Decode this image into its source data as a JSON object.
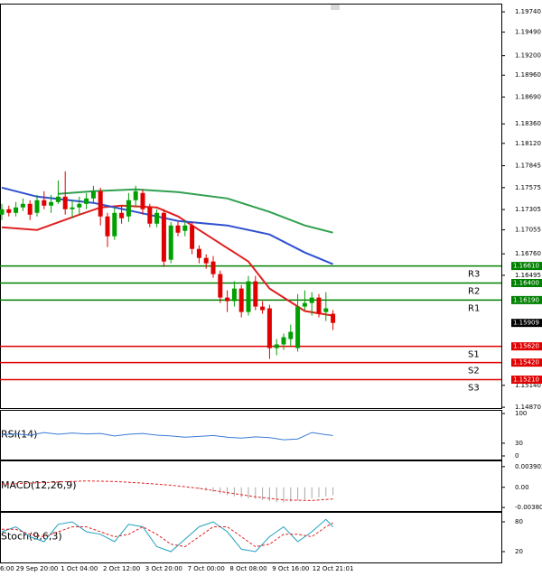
{
  "chart_data": [
    {
      "type": "candlestick",
      "categories": [
        "6:00",
        null,
        null,
        null,
        null,
        "29 Sep 20:00",
        null,
        null,
        null,
        null,
        null,
        "1 Oct 04:00",
        null,
        null,
        null,
        null,
        null,
        "2 Oct 12:00",
        null,
        null,
        null,
        null,
        null,
        "3 Oct 20:00",
        null,
        null,
        null,
        null,
        null,
        "7 Oct 00:00",
        null,
        null,
        null,
        null,
        null,
        "8 Oct 08:00",
        null,
        null,
        null,
        null,
        null,
        "9 Oct 16:00",
        null,
        null,
        null,
        null,
        null,
        "12 Oct 21:01"
      ],
      "open": [
        1.17242,
        1.17309,
        1.17264,
        1.17331,
        1.17375,
        1.17264,
        1.1742,
        1.17353,
        1.17398,
        1.17464,
        1.17309,
        1.17331,
        1.17375,
        1.17442,
        1.17531,
        1.1722,
        1.16976,
        1.17264,
        1.1722,
        1.1742,
        1.17509,
        1.17331,
        1.17131,
        1.17264,
        1.16687,
        1.17109,
        1.17042,
        1.17109,
        1.1682,
        1.16709,
        1.16665,
        1.1651,
        1.16221,
        1.16177,
        1.16332,
        1.16043,
        1.16421,
        1.1611,
        1.16088,
        1.15599,
        1.15644,
        1.1571,
        1.15599,
        1.1611,
        1.16154,
        1.16221,
        1.16043,
        1.16021
      ],
      "high": [
        1.17375,
        1.17353,
        1.17398,
        1.17442,
        1.1742,
        1.17486,
        1.17531,
        1.17486,
        1.17664,
        1.17775,
        1.1742,
        1.17464,
        1.17509,
        1.17597,
        1.17575,
        1.17264,
        1.17331,
        1.17353,
        1.17509,
        1.17597,
        1.17553,
        1.17375,
        1.17309,
        1.17309,
        1.17153,
        1.17153,
        1.17176,
        1.17153,
        1.16865,
        1.16754,
        1.16732,
        1.16554,
        1.1631,
        1.16421,
        1.16376,
        1.16487,
        1.16487,
        1.16177,
        1.16132,
        1.1571,
        1.15777,
        1.15888,
        1.16265,
        1.1631,
        1.16288,
        1.16265,
        1.16288,
        1.16066
      ],
      "low": [
        1.17176,
        1.1722,
        1.1722,
        1.17287,
        1.17176,
        1.1722,
        1.17309,
        1.17264,
        1.17375,
        1.17242,
        1.17198,
        1.17242,
        1.17309,
        1.17375,
        1.17109,
        1.16843,
        1.16931,
        1.17131,
        1.17153,
        1.17331,
        1.17242,
        1.17087,
        1.17087,
        1.16598,
        1.16643,
        1.16976,
        1.16976,
        1.16754,
        1.16643,
        1.16576,
        1.16465,
        1.16154,
        1.16043,
        1.1611,
        1.15977,
        1.15999,
        1.16066,
        1.16021,
        1.15466,
        1.15511,
        1.15577,
        1.15622,
        1.15555,
        1.16066,
        1.15999,
        1.15977,
        1.15932,
        1.15821
      ],
      "close": [
        1.17309,
        1.17264,
        1.17331,
        1.17375,
        1.17242,
        1.1742,
        1.17353,
        1.17398,
        1.17464,
        1.17309,
        1.17331,
        1.17375,
        1.17442,
        1.17531,
        1.1722,
        1.16976,
        1.17264,
        1.17198,
        1.1742,
        1.17531,
        1.17309,
        1.17131,
        1.17264,
        1.16665,
        1.17109,
        1.1702,
        1.17109,
        1.1682,
        1.16709,
        1.16643,
        1.1651,
        1.16221,
        1.16177,
        1.16332,
        1.16043,
        1.16421,
        1.1611,
        1.16066,
        1.15599,
        1.15644,
        1.15733,
        1.15799,
        1.1611,
        1.16154,
        1.16221,
        1.16021,
        1.16088,
        1.15909
      ],
      "up_color": "#00a000",
      "down_color": "#e00000",
      "ylim": [
        1.1486,
        1.1983
      ],
      "yticks": [
        {
          "value": 1.1974,
          "label": "1.19740"
        },
        {
          "value": 1.1949,
          "label": "1.19490"
        },
        {
          "value": 1.192,
          "label": "1.19200"
        },
        {
          "value": 1.1896,
          "label": "1.18960"
        },
        {
          "value": 1.1869,
          "label": "1.18690"
        },
        {
          "value": 1.1836,
          "label": "1.18360"
        },
        {
          "value": 1.1812,
          "label": "1.18120"
        },
        1.17845,
        1.17575,
        1.17305,
        1.17055,
        {
          "value": 1.1676,
          "label": "1.16760"
        },
        1.16495,
        {
          "value": 1.1514,
          "label": "1.15140"
        },
        {
          "value": 1.1487,
          "label": "1.14870"
        }
      ],
      "moving_averages": [
        {
          "color": "#e02020",
          "x": [
            0,
            5,
            11,
            14,
            17,
            22,
            25,
            29,
            35,
            38,
            43,
            47
          ],
          "values": [
            1.17087,
            1.17054,
            1.17242,
            1.17331,
            1.17353,
            1.17331,
            1.1722,
            1.16998,
            1.16665,
            1.16332,
            1.16055,
            1.15999
          ]
        },
        {
          "color": "#3050d0",
          "x": [
            0,
            5,
            13,
            19,
            25,
            32,
            38,
            43,
            47
          ],
          "values": [
            1.17575,
            1.17464,
            1.17387,
            1.17276,
            1.17165,
            1.17109,
            1.16998,
            1.16776,
            1.16632
          ]
        },
        {
          "color": "#30a050",
          "x": [
            8,
            13,
            19,
            25,
            32,
            38,
            43,
            47
          ],
          "values": [
            1.17498,
            1.17531,
            1.17553,
            1.1752,
            1.17442,
            1.17276,
            1.17109,
            1.1702
          ]
        }
      ],
      "levels": [
        {
          "name": "R3",
          "value": 1.1661,
          "label": "1.16610",
          "color": "#008000"
        },
        {
          "name": "R2",
          "value": 1.164,
          "label": "1.16400",
          "color": "#008000"
        },
        {
          "name": "R1",
          "value": 1.1619,
          "label": "1.16190",
          "color": "#008000"
        },
        {
          "name": "S1",
          "value": 1.1562,
          "label": "1.15620",
          "color": "#e00000"
        },
        {
          "name": "S2",
          "value": 1.1542,
          "label": "1.15420",
          "color": "#e00000"
        },
        {
          "name": "S3",
          "value": 1.1521,
          "label": "1.15210",
          "color": "#e00000"
        }
      ],
      "current_price": 1.15909
    },
    {
      "type": "line",
      "title": "RSI(14)",
      "ylim": [
        0,
        100
      ],
      "yticks": [
        100,
        30,
        0
      ],
      "series": [
        {
          "color": "#3a7bd5",
          "x": [
            0,
            2,
            4,
            6,
            8,
            10,
            12,
            14,
            16,
            18,
            20,
            22,
            24,
            26,
            28,
            30,
            32,
            34,
            36,
            38,
            40,
            42,
            44,
            46,
            47
          ],
          "values": [
            50,
            52,
            49,
            55,
            51,
            54,
            52,
            53,
            47,
            51,
            53,
            49,
            47,
            44,
            46,
            48,
            44,
            42,
            45,
            43,
            38,
            40,
            55,
            50,
            48
          ]
        }
      ]
    },
    {
      "type": "bar",
      "title": "MACD(12,26,9)",
      "ylim": [
        -0.0043,
        0.0049
      ],
      "yticks": [
        0.003903,
        {
          "value": 0,
          "label": "0.00"
        },
        -0.003807
      ],
      "series": [
        {
          "type": "bar",
          "color": "#a8a8a8",
          "x": [
            28,
            29,
            30,
            31,
            32,
            33,
            34,
            35,
            36,
            37,
            38,
            39,
            40,
            41,
            42,
            43,
            44,
            45,
            46,
            47
          ],
          "values": [
            -0.0003,
            -0.0006,
            -0.0009,
            -0.0012,
            -0.0015,
            -0.0017,
            -0.0019,
            -0.0021,
            -0.0022,
            -0.0024,
            -0.0026,
            -0.0028,
            -0.0028,
            -0.0027,
            -0.0025,
            -0.0023,
            -0.0021,
            -0.0019,
            -0.0017,
            -0.0015
          ]
        },
        {
          "type": "line",
          "color": "#e02020",
          "dash": true,
          "x": [
            0,
            4,
            8,
            12,
            16,
            20,
            24,
            28,
            32,
            36,
            40,
            44,
            47
          ],
          "values": [
            0.0006,
            0.0008,
            0.001,
            0.0012,
            0.0011,
            0.0008,
            0.0004,
            -0.0002,
            -0.001,
            -0.0018,
            -0.0024,
            -0.0025,
            -0.0022
          ]
        }
      ]
    },
    {
      "type": "line",
      "title": "Stoch(9,6,3)",
      "ylim": [
        0,
        100
      ],
      "yticks": [
        80,
        20
      ],
      "series": [
        {
          "color": "#20a0c0",
          "x": [
            0,
            2,
            4,
            6,
            8,
            10,
            12,
            14,
            16,
            18,
            20,
            22,
            24,
            26,
            28,
            30,
            32,
            34,
            36,
            38,
            40,
            42,
            44,
            46,
            47
          ],
          "values": [
            60,
            70,
            50,
            40,
            75,
            80,
            60,
            55,
            40,
            75,
            70,
            30,
            20,
            45,
            70,
            80,
            60,
            25,
            20,
            50,
            70,
            40,
            60,
            85,
            70
          ]
        },
        {
          "color": "#e02020",
          "dash": true,
          "x": [
            0,
            2,
            4,
            6,
            8,
            10,
            12,
            14,
            16,
            18,
            20,
            22,
            24,
            26,
            28,
            30,
            32,
            34,
            36,
            38,
            40,
            42,
            44,
            46,
            47
          ],
          "values": [
            65,
            65,
            55,
            50,
            60,
            70,
            70,
            60,
            50,
            55,
            70,
            55,
            35,
            30,
            50,
            70,
            70,
            50,
            30,
            35,
            55,
            55,
            50,
            70,
            78
          ]
        }
      ]
    }
  ]
}
